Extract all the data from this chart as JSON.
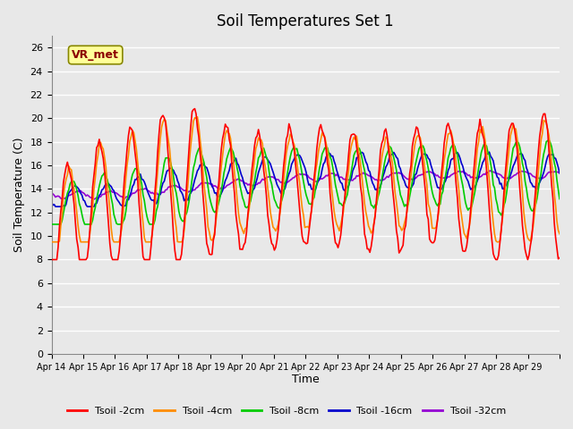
{
  "title": "Soil Temperatures Set 1",
  "xlabel": "Time",
  "ylabel": "Soil Temperature (C)",
  "ylim": [
    0,
    27
  ],
  "yticks": [
    0,
    2,
    4,
    6,
    8,
    10,
    12,
    14,
    16,
    18,
    20,
    22,
    24,
    26
  ],
  "annotation_text": "VR_met",
  "annotation_color": "#8B0000",
  "annotation_bg": "#FFFF99",
  "bg_color": "#E8E8E8",
  "plot_bg": "#E8E8E8",
  "grid_color": "#FFFFFF",
  "series_colors": [
    "#FF0000",
    "#FF8C00",
    "#00CC00",
    "#0000CD",
    "#9400D3"
  ],
  "series_labels": [
    "Tsoil -2cm",
    "Tsoil -4cm",
    "Tsoil -8cm",
    "Tsoil -16cm",
    "Tsoil -32cm"
  ],
  "x_labels": [
    "Apr 14",
    "Apr 15",
    "Apr 16",
    "Apr 17",
    "Apr 18",
    "Apr 19",
    "Apr 20",
    "Apr 21",
    "Apr 22",
    "Apr 23",
    "Apr 24",
    "Apr 25",
    "Apr 26",
    "Apr 27",
    "Apr 28",
    "Apr 29"
  ],
  "n_days": 16,
  "n_points": 384
}
